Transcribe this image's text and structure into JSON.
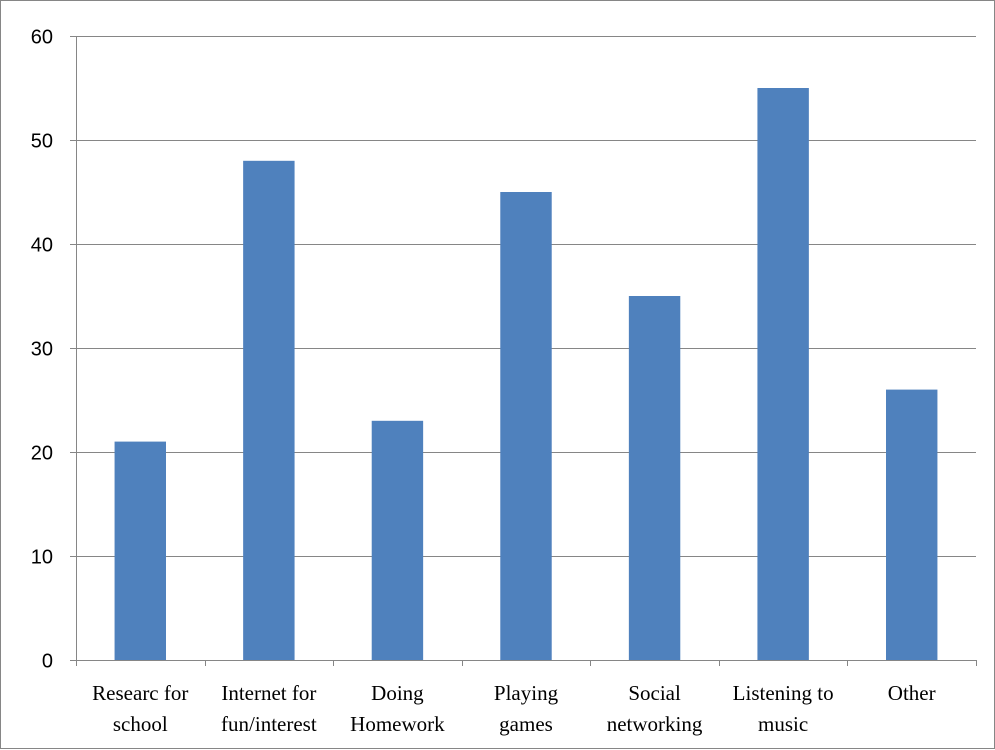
{
  "chart_data": {
    "type": "bar",
    "categories": [
      [
        "Researc for",
        "school"
      ],
      [
        "Internet for",
        "fun/interest"
      ],
      [
        "Doing",
        "Homework"
      ],
      [
        "Playing",
        "games"
      ],
      [
        "Social",
        "networking"
      ],
      [
        "Listening to",
        "music"
      ],
      [
        "Other"
      ]
    ],
    "values": [
      21,
      48,
      23,
      45,
      35,
      55,
      26
    ],
    "ylim": [
      0,
      60
    ],
    "yticks": [
      0,
      10,
      20,
      30,
      40,
      50,
      60
    ],
    "grid": true,
    "legend": "none",
    "colors": {
      "bar": "#4f81bd",
      "grid": "#868686",
      "axis": "#868686",
      "text": "#000000"
    }
  }
}
